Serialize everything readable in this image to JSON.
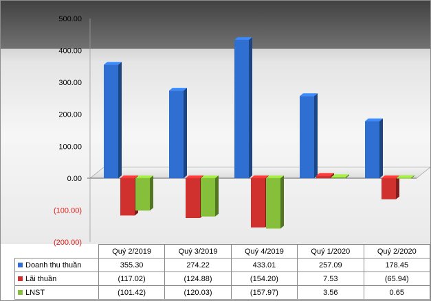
{
  "chart_data": {
    "type": "bar",
    "categories": [
      "Quý 2/2019",
      "Quý 3/2019",
      "Quý 4/2019",
      "Quý 1/2020",
      "Quý 2/2020"
    ],
    "series": [
      {
        "name": "Doanh thu thuần",
        "color": "#2f6fd1",
        "values": [
          355.3,
          274.22,
          433.01,
          257.09,
          178.45
        ],
        "labels": [
          "355.30",
          "274.22",
          "433.01",
          "257.09",
          "178.45"
        ]
      },
      {
        "name": "Lãi thuần",
        "color": "#d0302e",
        "values": [
          -117.02,
          -124.88,
          -154.2,
          7.53,
          -65.94
        ],
        "labels": [
          "(117.02)",
          "(124.88)",
          "(154.20)",
          "7.53",
          "(65.94)"
        ]
      },
      {
        "name": "LNST",
        "color": "#86bf3a",
        "values": [
          -101.42,
          -120.03,
          -157.97,
          3.56,
          0.65
        ],
        "labels": [
          "(101.42)",
          "(120.03)",
          "(157.97)",
          "3.56",
          "0.65"
        ]
      }
    ],
    "ylim": [
      -200,
      500
    ],
    "yticks": [
      500,
      400,
      300,
      200,
      100,
      0,
      -100,
      -200
    ],
    "ytick_labels": [
      "500.00",
      "400.00",
      "300.00",
      "200.00",
      "100.00",
      "0.00",
      "(100.00)",
      "(200.00)"
    ],
    "negative_tick_color": "#e0201c",
    "grid": false,
    "legend": "data-table-below",
    "title": "",
    "xlabel": "",
    "ylabel": ""
  }
}
